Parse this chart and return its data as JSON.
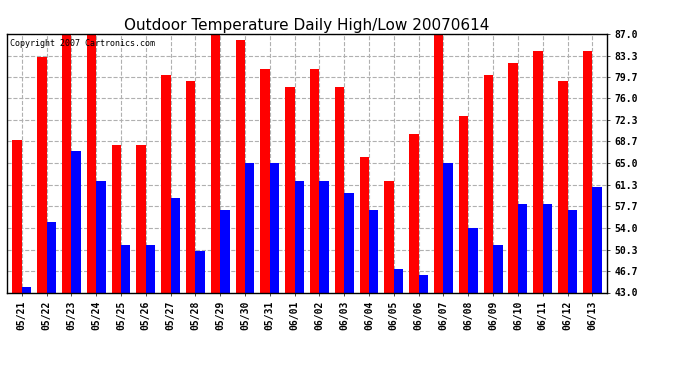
{
  "title": "Outdoor Temperature Daily High/Low 20070614",
  "copyright": "Copyright 2007 Cartronics.com",
  "dates": [
    "05/21",
    "05/22",
    "05/23",
    "05/24",
    "05/25",
    "05/26",
    "05/27",
    "05/28",
    "05/29",
    "05/30",
    "05/31",
    "06/01",
    "06/02",
    "06/03",
    "06/04",
    "06/05",
    "06/06",
    "06/07",
    "06/08",
    "06/09",
    "06/10",
    "06/11",
    "06/12",
    "06/13"
  ],
  "highs": [
    69,
    83,
    87,
    87,
    68,
    68,
    80,
    79,
    87,
    86,
    81,
    78,
    81,
    78,
    66,
    62,
    70,
    87,
    73,
    80,
    82,
    84,
    79,
    84
  ],
  "lows": [
    44,
    55,
    67,
    62,
    51,
    51,
    59,
    50,
    57,
    65,
    65,
    62,
    62,
    60,
    57,
    47,
    46,
    65,
    54,
    51,
    58,
    58,
    57,
    61
  ],
  "high_color": "#ff0000",
  "low_color": "#0000ff",
  "background_color": "#ffffff",
  "grid_color": "#b0b0b0",
  "yticks": [
    43.0,
    46.7,
    50.3,
    54.0,
    57.7,
    61.3,
    65.0,
    68.7,
    72.3,
    76.0,
    79.7,
    83.3,
    87.0
  ],
  "ymin": 43.0,
  "ymax": 87.0,
  "bar_width": 0.38,
  "title_fontsize": 11,
  "tick_fontsize": 7,
  "ytick_labels": [
    "43.0",
    "46.7",
    "50.3",
    "54.0",
    "57.7",
    "61.3",
    "65.0",
    "68.7",
    "72.3",
    "76.0",
    "79.7",
    "83.3",
    "87.0"
  ]
}
